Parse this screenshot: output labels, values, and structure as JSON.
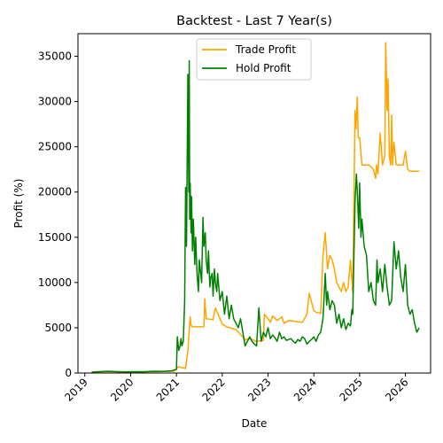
{
  "chart_data": {
    "type": "line",
    "title": "Backtest - Last 7 Year(s)",
    "xlabel": "Date",
    "ylabel": "Profit (%)",
    "xlim": [
      2018.85,
      2026.55
    ],
    "ylim": [
      0,
      37500
    ],
    "x_ticks": [
      2019,
      2020,
      2021,
      2022,
      2023,
      2024,
      2025,
      2026
    ],
    "x_tick_labels": [
      "2019",
      "2020",
      "2021",
      "2022",
      "2023",
      "2024",
      "2025",
      "2026"
    ],
    "y_ticks": [
      0,
      5000,
      10000,
      15000,
      20000,
      25000,
      30000,
      35000
    ],
    "y_tick_labels": [
      "0",
      "5000",
      "10000",
      "15000",
      "20000",
      "25000",
      "30000",
      "35000"
    ],
    "grid": false,
    "legend_position": "top-center",
    "series": [
      {
        "name": "Trade Profit",
        "color": "#ffa500",
        "x": [
          2019.15,
          2019.5,
          2020.0,
          2020.5,
          2020.95,
          2021.0,
          2021.05,
          2021.1,
          2021.2,
          2021.25,
          2021.3,
          2021.32,
          2021.35,
          2021.5,
          2021.6,
          2021.62,
          2021.65,
          2021.8,
          2021.85,
          2022.0,
          2022.1,
          2022.3,
          2022.5,
          2022.6,
          2022.75,
          2022.9,
          2022.92,
          2023.0,
          2023.05,
          2023.1,
          2023.2,
          2023.3,
          2023.35,
          2023.45,
          2023.6,
          2023.75,
          2023.85,
          2023.9,
          2024.0,
          2024.05,
          2024.15,
          2024.2,
          2024.25,
          2024.3,
          2024.35,
          2024.4,
          2024.45,
          2024.5,
          2024.6,
          2024.65,
          2024.7,
          2024.75,
          2024.8,
          2024.85,
          2024.9,
          2024.92,
          2024.95,
          2024.97,
          2025.0,
          2025.05,
          2025.1,
          2025.2,
          2025.3,
          2025.35,
          2025.37,
          2025.4,
          2025.45,
          2025.5,
          2025.55,
          2025.57,
          2025.6,
          2025.62,
          2025.65,
          2025.68,
          2025.7,
          2025.72,
          2025.75,
          2025.8,
          2025.85,
          2025.9,
          2025.95,
          2026.0,
          2026.05,
          2026.1,
          2026.3
        ],
        "values": [
          100,
          150,
          120,
          150,
          200,
          500,
          700,
          600,
          500,
          2500,
          6200,
          5300,
          5100,
          5100,
          5100,
          8200,
          6000,
          5900,
          7200,
          5400,
          5100,
          4800,
          3700,
          3800,
          3500,
          3600,
          6500,
          6000,
          5600,
          6300,
          5800,
          6200,
          5500,
          5800,
          5700,
          5600,
          6500,
          8800,
          6900,
          6700,
          6600,
          13000,
          15500,
          11500,
          13000,
          12500,
          11500,
          10000,
          9000,
          10000,
          9000,
          9500,
          12500,
          8900,
          29000,
          27000,
          30500,
          26000,
          26000,
          23000,
          23000,
          23000,
          22500,
          21500,
          23000,
          22000,
          26500,
          23000,
          24000,
          36500,
          29000,
          32500,
          24000,
          23000,
          28500,
          23000,
          25500,
          23000,
          23000,
          23000,
          23000,
          24500,
          22500,
          22300,
          22300
        ]
      },
      {
        "name": "Hold Profit",
        "color": "#008000",
        "x": [
          2019.15,
          2019.3,
          2019.5,
          2019.7,
          2019.9,
          2020.1,
          2020.3,
          2020.5,
          2020.7,
          2020.9,
          2021.0,
          2021.02,
          2021.05,
          2021.08,
          2021.1,
          2021.12,
          2021.15,
          2021.18,
          2021.2,
          2021.22,
          2021.25,
          2021.27,
          2021.28,
          2021.29,
          2021.3,
          2021.32,
          2021.33,
          2021.35,
          2021.37,
          2021.4,
          2021.42,
          2021.45,
          2021.48,
          2021.5,
          2021.55,
          2021.58,
          2021.6,
          2021.63,
          2021.65,
          2021.68,
          2021.7,
          2021.73,
          2021.75,
          2021.78,
          2021.8,
          2021.83,
          2021.85,
          2021.88,
          2021.9,
          2021.95,
          2022.0,
          2022.05,
          2022.1,
          2022.15,
          2022.2,
          2022.25,
          2022.3,
          2022.35,
          2022.4,
          2022.45,
          2022.5,
          2022.55,
          2022.6,
          2022.65,
          2022.7,
          2022.75,
          2022.8,
          2022.85,
          2022.9,
          2022.95,
          2023.0,
          2023.05,
          2023.1,
          2023.15,
          2023.2,
          2023.25,
          2023.3,
          2023.35,
          2023.4,
          2023.45,
          2023.5,
          2023.55,
          2023.6,
          2023.65,
          2023.7,
          2023.75,
          2023.8,
          2023.85,
          2023.9,
          2023.95,
          2024.0,
          2024.05,
          2024.1,
          2024.15,
          2024.2,
          2024.22,
          2024.25,
          2024.28,
          2024.3,
          2024.35,
          2024.4,
          2024.45,
          2024.5,
          2024.55,
          2024.6,
          2024.65,
          2024.7,
          2024.75,
          2024.8,
          2024.83,
          2024.85,
          2024.88,
          2024.9,
          2024.93,
          2024.95,
          2024.98,
          2025.0,
          2025.03,
          2025.05,
          2025.1,
          2025.15,
          2025.2,
          2025.25,
          2025.3,
          2025.35,
          2025.38,
          2025.4,
          2025.45,
          2025.5,
          2025.55,
          2025.6,
          2025.65,
          2025.7,
          2025.75,
          2025.8,
          2025.85,
          2025.9,
          2025.95,
          2026.0,
          2026.05,
          2026.1,
          2026.15,
          2026.2,
          2026.25,
          2026.3
        ],
        "values": [
          100,
          150,
          200,
          150,
          120,
          150,
          130,
          200,
          180,
          250,
          400,
          4000,
          2500,
          3000,
          3800,
          3000,
          3500,
          8000,
          20500,
          14000,
          33000,
          20000,
          34500,
          17000,
          21000,
          15500,
          19500,
          13500,
          17000,
          12000,
          15000,
          11000,
          9000,
          12500,
          10000,
          17200,
          14000,
          15500,
          12500,
          11000,
          13500,
          9500,
          10500,
          11000,
          8500,
          11500,
          10000,
          9000,
          11000,
          8000,
          9000,
          6500,
          8500,
          6000,
          7500,
          6000,
          5500,
          5000,
          6000,
          4500,
          3000,
          3500,
          4000,
          3500,
          3200,
          3000,
          7200,
          3500,
          4500,
          4000,
          5000,
          3800,
          4200,
          3900,
          3500,
          4500,
          3800,
          4000,
          3600,
          3700,
          3800,
          3500,
          3300,
          3700,
          3500,
          4000,
          3800,
          3200,
          3500,
          3700,
          4000,
          3500,
          4200,
          4500,
          6000,
          8000,
          11000,
          7500,
          9000,
          7000,
          8000,
          7500,
          5500,
          6500,
          5000,
          6000,
          4800,
          5500,
          5200,
          7000,
          6500,
          14000,
          19000,
          22000,
          20000,
          16000,
          21000,
          15000,
          17000,
          14000,
          13000,
          9000,
          10000,
          8000,
          7500,
          12500,
          10000,
          11500,
          9000,
          12000,
          9500,
          7500,
          8000,
          14500,
          11500,
          13500,
          10500,
          9000,
          12000,
          7500,
          6500,
          7000,
          5500,
          4500,
          5000
        ]
      }
    ]
  }
}
